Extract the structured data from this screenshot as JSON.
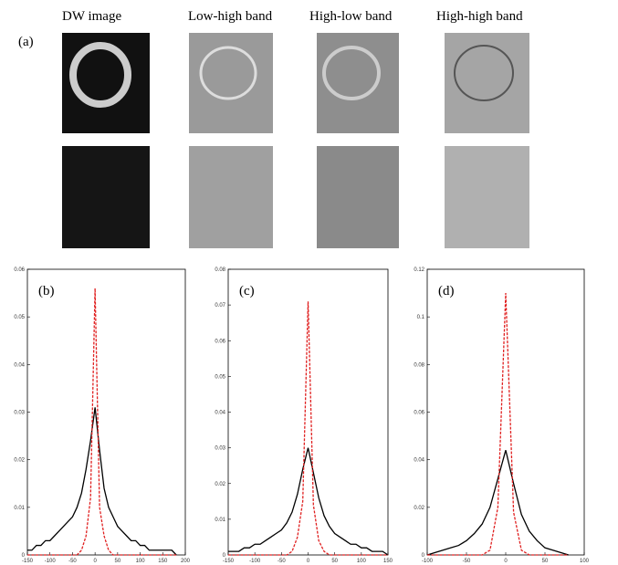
{
  "panel_a": {
    "label": "(a)",
    "columns": [
      "DW image",
      "Low-high band",
      "High-low band",
      "High-high band"
    ]
  },
  "chart_data": [
    {
      "type": "line",
      "label": "(b)",
      "x": [
        -150,
        -140,
        -130,
        -120,
        -110,
        -100,
        -90,
        -80,
        -70,
        -60,
        -50,
        -40,
        -30,
        -20,
        -10,
        0,
        10,
        20,
        30,
        40,
        50,
        60,
        70,
        80,
        90,
        100,
        110,
        120,
        130,
        140,
        150,
        160,
        170,
        180
      ],
      "series": [
        {
          "name": null,
          "color": "#000000",
          "dashed": false,
          "values": [
            0.001,
            0.001,
            0.002,
            0.002,
            0.003,
            0.003,
            0.004,
            0.005,
            0.006,
            0.007,
            0.008,
            0.01,
            0.013,
            0.018,
            0.024,
            0.031,
            0.022,
            0.014,
            0.01,
            0.008,
            0.006,
            0.005,
            0.004,
            0.003,
            0.003,
            0.002,
            0.002,
            0.001,
            0.001,
            0.001,
            0.001,
            0.001,
            0.001,
            0
          ]
        },
        {
          "name": null,
          "color": "#e02020",
          "dashed": true,
          "values": [
            0,
            0,
            0,
            0,
            0,
            0,
            0,
            0,
            0,
            0,
            0,
            0,
            0.001,
            0.004,
            0.012,
            0.056,
            0.01,
            0.004,
            0.001,
            0,
            0,
            0,
            0,
            0,
            0,
            0,
            0,
            0,
            0,
            0,
            0,
            0,
            0,
            0
          ]
        }
      ],
      "xlim": [
        -150,
        200
      ],
      "xticks": [
        -150,
        -100,
        -50,
        0,
        50,
        100,
        150,
        200
      ],
      "ylim": [
        0,
        0.06
      ],
      "yticks": [
        0,
        0.01,
        0.02,
        0.03,
        0.04,
        0.05,
        0.06
      ]
    },
    {
      "type": "line",
      "label": "(c)",
      "x": [
        -150,
        -140,
        -130,
        -120,
        -110,
        -100,
        -90,
        -80,
        -70,
        -60,
        -50,
        -40,
        -30,
        -20,
        -10,
        0,
        10,
        20,
        30,
        40,
        50,
        60,
        70,
        80,
        90,
        100,
        110,
        120,
        130,
        140,
        150
      ],
      "series": [
        {
          "name": null,
          "color": "#000000",
          "dashed": false,
          "values": [
            0.001,
            0.001,
            0.001,
            0.002,
            0.002,
            0.003,
            0.003,
            0.004,
            0.005,
            0.006,
            0.007,
            0.009,
            0.012,
            0.017,
            0.024,
            0.03,
            0.023,
            0.016,
            0.011,
            0.008,
            0.006,
            0.005,
            0.004,
            0.003,
            0.003,
            0.002,
            0.002,
            0.001,
            0.001,
            0.001,
            0
          ]
        },
        {
          "name": null,
          "color": "#e02020",
          "dashed": true,
          "values": [
            0,
            0,
            0,
            0,
            0,
            0,
            0,
            0,
            0,
            0,
            0,
            0,
            0.001,
            0.005,
            0.015,
            0.071,
            0.014,
            0.004,
            0.001,
            0,
            0,
            0,
            0,
            0,
            0,
            0,
            0,
            0,
            0,
            0,
            0
          ]
        }
      ],
      "xlim": [
        -150,
        150
      ],
      "xticks": [
        -150,
        -100,
        -50,
        0,
        50,
        100,
        150
      ],
      "ylim": [
        0,
        0.08
      ],
      "yticks": [
        0,
        0.01,
        0.02,
        0.03,
        0.04,
        0.05,
        0.06,
        0.07,
        0.08
      ]
    },
    {
      "type": "line",
      "label": "(d)",
      "x": [
        -100,
        -90,
        -80,
        -70,
        -60,
        -50,
        -40,
        -30,
        -20,
        -10,
        0,
        10,
        20,
        30,
        40,
        50,
        60,
        70,
        80
      ],
      "series": [
        {
          "name": null,
          "color": "#000000",
          "dashed": false,
          "values": [
            0,
            0.001,
            0.002,
            0.003,
            0.004,
            0.006,
            0.009,
            0.013,
            0.02,
            0.032,
            0.044,
            0.03,
            0.017,
            0.01,
            0.006,
            0.003,
            0.002,
            0.001,
            0
          ]
        },
        {
          "name": null,
          "color": "#e02020",
          "dashed": true,
          "values": [
            0,
            0,
            0,
            0,
            0,
            0,
            0,
            0,
            0.002,
            0.02,
            0.11,
            0.018,
            0.002,
            0,
            0,
            0,
            0,
            0,
            0
          ]
        }
      ],
      "xlim": [
        -100,
        100
      ],
      "xticks": [
        -100,
        -50,
        0,
        50,
        100
      ],
      "ylim": [
        0,
        0.12
      ],
      "yticks": [
        0,
        0.02,
        0.04,
        0.06,
        0.08,
        0.1,
        0.12
      ]
    }
  ]
}
